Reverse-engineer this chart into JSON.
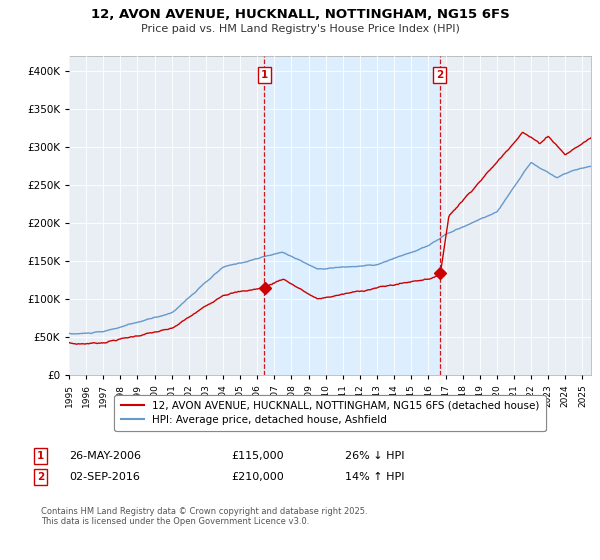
{
  "title": "12, AVON AVENUE, HUCKNALL, NOTTINGHAM, NG15 6FS",
  "subtitle": "Price paid vs. HM Land Registry's House Price Index (HPI)",
  "legend_line1": "12, AVON AVENUE, HUCKNALL, NOTTINGHAM, NG15 6FS (detached house)",
  "legend_line2": "HPI: Average price, detached house, Ashfield",
  "footer": "Contains HM Land Registry data © Crown copyright and database right 2025.\nThis data is licensed under the Open Government Licence v3.0.",
  "sale1_label": "26-MAY-2006",
  "sale1_price": "£115,000",
  "sale1_hpi": "26% ↓ HPI",
  "sale1_date_x": 2006.4,
  "sale1_price_val": 115000,
  "sale2_label": "02-SEP-2016",
  "sale2_price": "£210,000",
  "sale2_hpi": "14% ↑ HPI",
  "sale2_date_x": 2016.67,
  "sale2_price_val": 210000,
  "property_color": "#cc0000",
  "hpi_color": "#6699cc",
  "highlight_color": "#ddeeff",
  "vline_color": "#cc0000",
  "background_color": "#e8eef4",
  "ylim": [
    0,
    420000
  ],
  "xlim_start": 1995,
  "xlim_end": 2025.5
}
